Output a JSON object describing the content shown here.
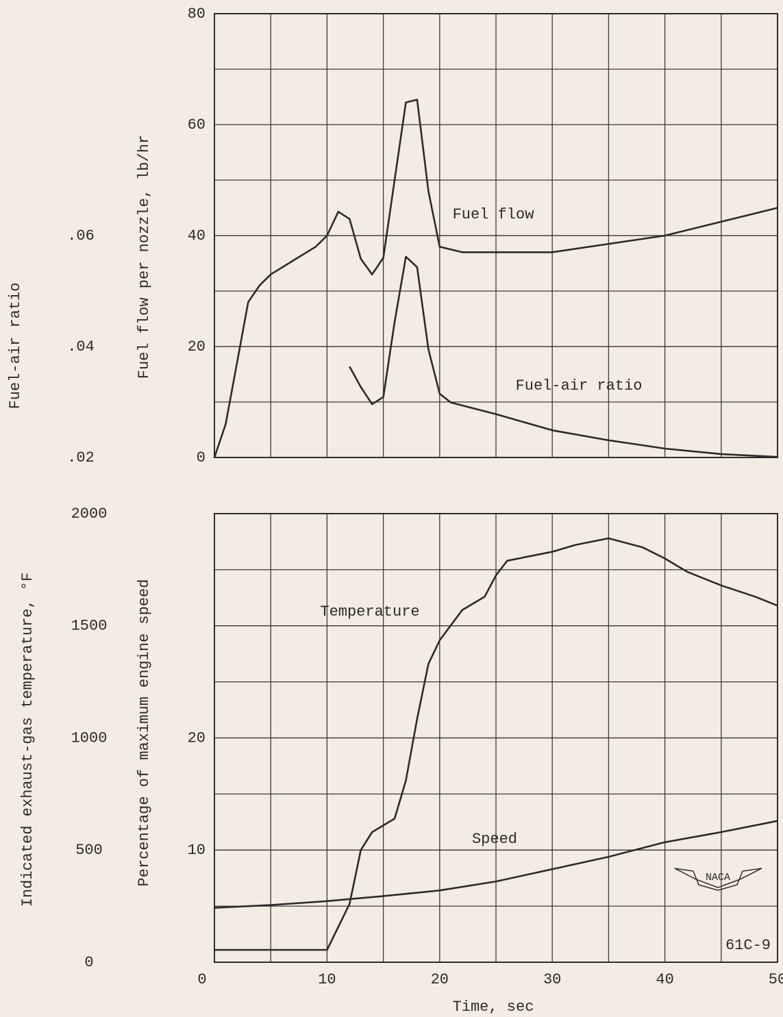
{
  "chart_data": [
    {
      "type": "line",
      "ylabel": "Fuel flow per nozzle, lb/hr",
      "y2label": "Fuel-air ratio",
      "xlim": [
        0,
        50
      ],
      "ylim": [
        0,
        80
      ],
      "yticks": [
        0,
        20,
        40,
        60,
        80
      ],
      "y2lim": [
        0.02,
        0.1
      ],
      "y2ticks": [
        {
          "value": 0.02,
          "label": ".02"
        },
        {
          "value": 0.04,
          "label": ".04"
        },
        {
          "value": 0.06,
          "label": ".06"
        }
      ],
      "grid": true,
      "series": [
        {
          "name": "Fuel flow",
          "color": "#2b2b2b",
          "x": [
            0,
            1,
            2,
            3,
            4,
            5,
            7,
            9,
            10,
            11,
            12,
            13,
            14,
            15,
            16,
            17,
            18,
            19,
            20,
            22,
            30,
            35,
            40,
            45,
            50
          ],
          "values": [
            0,
            6,
            17,
            28,
            31,
            33,
            35.5,
            38,
            40,
            44.3,
            43,
            35.8,
            33,
            36,
            50,
            64,
            64.5,
            48,
            38,
            37,
            37,
            38.5,
            40,
            42.5,
            45
          ]
        },
        {
          "name": "Fuel-air ratio",
          "color": "#2b2b2b",
          "axis": "y2",
          "x": [
            12,
            13,
            14,
            15,
            16,
            17,
            18,
            19,
            20,
            21,
            25,
            30,
            35,
            40,
            45,
            50
          ],
          "values": [
            0.0364,
            0.0327,
            0.0296,
            0.0309,
            0.0444,
            0.0562,
            0.0543,
            0.0395,
            0.0315,
            0.0299,
            0.0278,
            0.0249,
            0.0231,
            0.0216,
            0.0206,
            0.0201
          ]
        }
      ]
    },
    {
      "type": "line",
      "xlabel": "Time, sec",
      "ylabel": "Percentage of maximum engine speed",
      "y2label": "Indicated exhaust-gas temperature, °F",
      "xlim": [
        0,
        50
      ],
      "xticks": [
        0,
        10,
        20,
        30,
        40,
        50
      ],
      "ylim": [
        0,
        40
      ],
      "yticks": [
        10,
        20
      ],
      "y2lim": [
        0,
        2000
      ],
      "y2ticks": [
        0,
        500,
        1000,
        1500,
        2000
      ],
      "grid": true,
      "series": [
        {
          "name": "Temperature",
          "color": "#2b2b2b",
          "axis": "y2",
          "x": [
            0,
            10,
            12,
            13,
            14,
            16,
            17,
            18,
            19,
            20,
            22,
            24,
            25,
            26,
            28,
            30,
            32,
            35,
            38,
            40,
            42,
            45,
            48,
            50
          ],
          "values": [
            55,
            55,
            260,
            500,
            580,
            640,
            810,
            1085,
            1330,
            1435,
            1570,
            1630,
            1725,
            1790,
            1810,
            1830,
            1860,
            1890,
            1850,
            1800,
            1740,
            1680,
            1630,
            1590
          ]
        },
        {
          "name": "Speed",
          "color": "#2b2b2b",
          "x": [
            0,
            5,
            10,
            15,
            20,
            25,
            30,
            35,
            40,
            45,
            50
          ],
          "values": [
            4.85,
            5.1,
            5.45,
            5.9,
            6.4,
            7.2,
            8.3,
            9.4,
            10.7,
            11.6,
            12.6
          ]
        }
      ],
      "annotations": [
        "61C-9"
      ],
      "logo_text": "NACA"
    }
  ]
}
